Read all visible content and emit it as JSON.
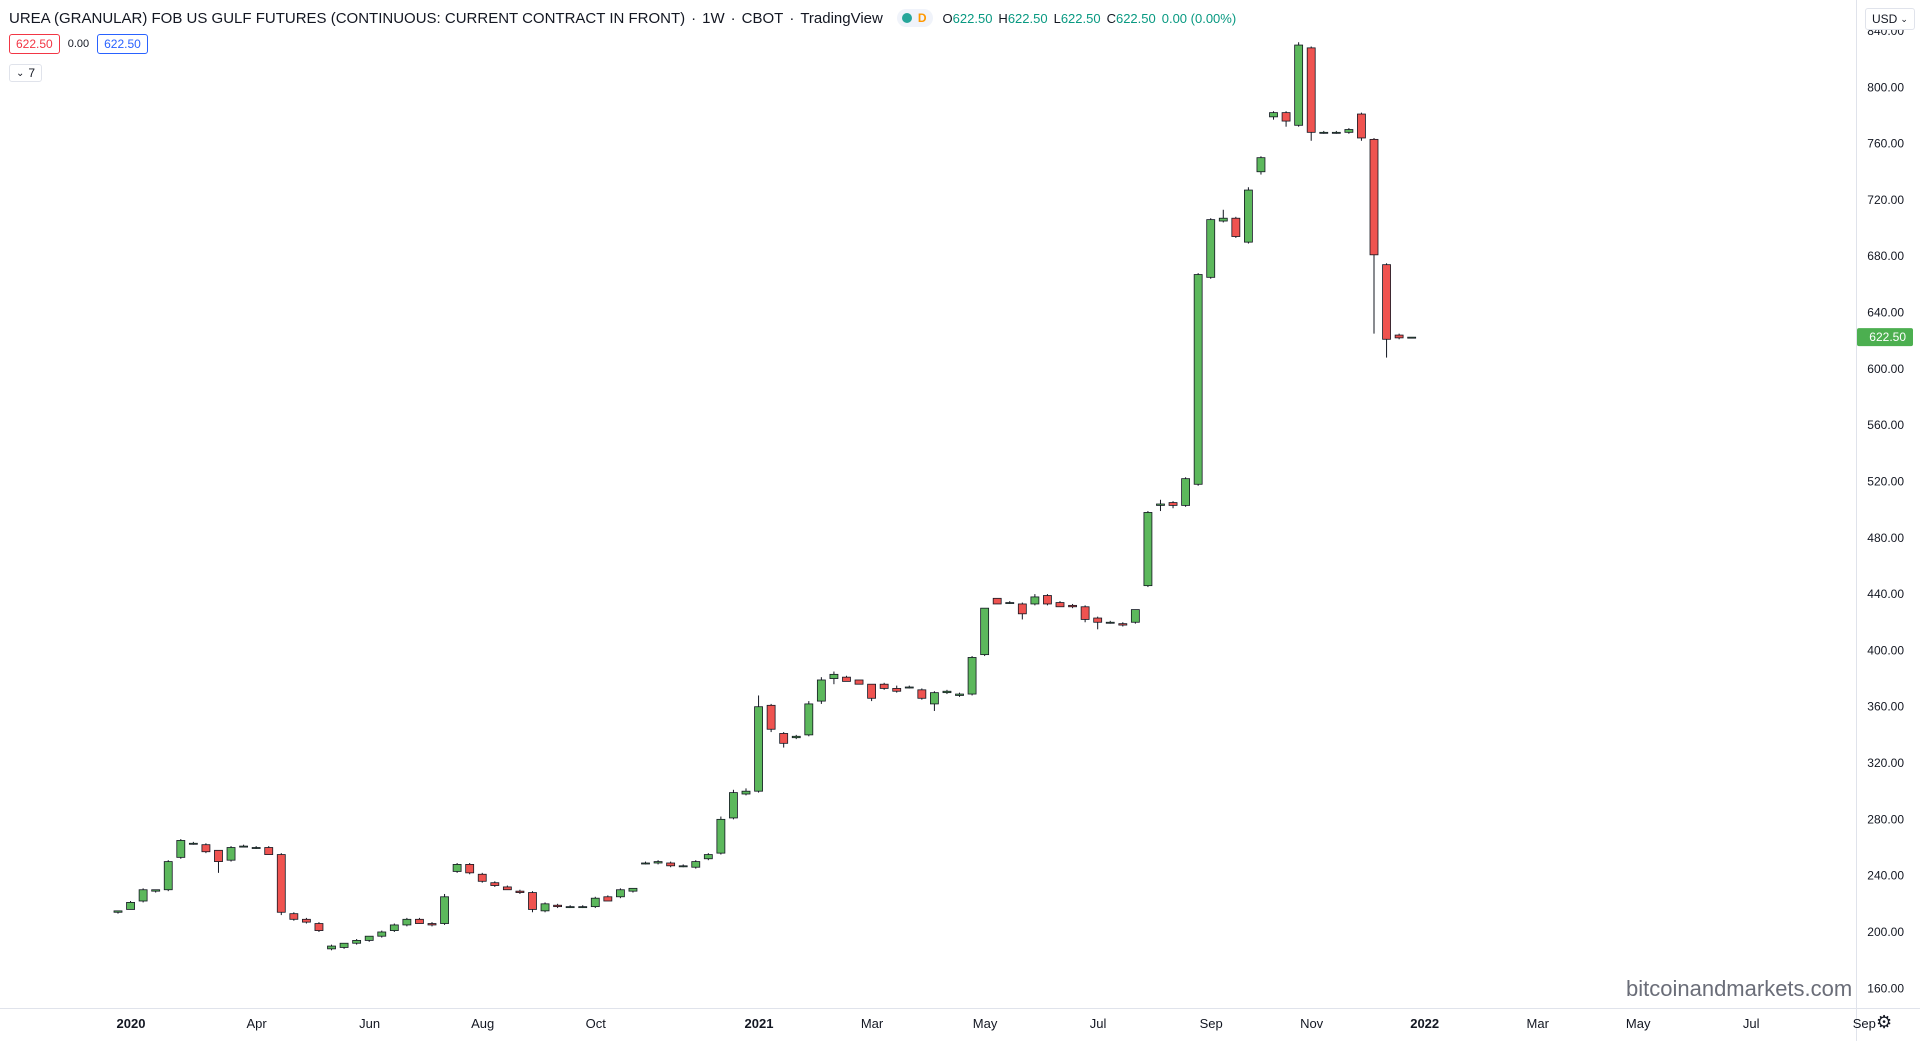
{
  "legend": {
    "title": "UREA (GRANULAR) FOB US GULF FUTURES (CONTINUOUS: CURRENT CONTRACT IN FRONT)",
    "interval": "1W",
    "exchange": "CBOT",
    "provider": "TradingView",
    "status_badge": "D",
    "ohlc": {
      "o_label": "O",
      "o": "622.50",
      "h_label": "H",
      "h": "622.50",
      "l_label": "L",
      "l": "622.50",
      "c_label": "C",
      "c": "622.50",
      "change": "0.00 (0.00%)"
    }
  },
  "quote": {
    "sell": "622.50",
    "spread": "0.00",
    "buy": "622.50"
  },
  "indicators_toggle": {
    "count": "7"
  },
  "currency": "USD",
  "watermark": "bitcoinandmarkets.com",
  "colors": {
    "up": "#5cb85c",
    "down": "#ef5350",
    "last_price": "#4caf50"
  },
  "chart_data": {
    "type": "candlestick",
    "y_axis": {
      "ticks": [
        "840.00",
        "800.00",
        "760.00",
        "720.00",
        "680.00",
        "640.00",
        "600.00",
        "560.00",
        "520.00",
        "480.00",
        "440.00",
        "400.00",
        "360.00",
        "320.00",
        "280.00",
        "240.00",
        "200.00",
        "160.00"
      ],
      "range": [
        146,
        862
      ]
    },
    "x_axis": {
      "ticks": [
        {
          "label": "2020",
          "bold": true,
          "index": 0
        },
        {
          "label": "Apr",
          "bold": false,
          "index": 10
        },
        {
          "label": "Jun",
          "bold": false,
          "index": 19
        },
        {
          "label": "Aug",
          "bold": false,
          "index": 28
        },
        {
          "label": "Oct",
          "bold": false,
          "index": 37
        },
        {
          "label": "2021",
          "bold": true,
          "index": 50
        },
        {
          "label": "Mar",
          "bold": false,
          "index": 59
        },
        {
          "label": "May",
          "bold": false,
          "index": 68
        },
        {
          "label": "Jul",
          "bold": false,
          "index": 77
        },
        {
          "label": "Sep",
          "bold": false,
          "index": 86
        },
        {
          "label": "Nov",
          "bold": false,
          "index": 94
        },
        {
          "label": "2022",
          "bold": true,
          "index": 103
        },
        {
          "label": "Mar",
          "bold": false,
          "index": 112
        },
        {
          "label": "May",
          "bold": false,
          "index": 120
        },
        {
          "label": "Jul",
          "bold": false,
          "index": 129
        },
        {
          "label": "Sep",
          "bold": false,
          "index": 138
        }
      ]
    },
    "last_price": "622.50",
    "candles": [
      {
        "i": 0,
        "o": 214,
        "h": 215,
        "l": 213,
        "c": 215
      },
      {
        "i": 1,
        "o": 216,
        "h": 222,
        "l": 216,
        "c": 221
      },
      {
        "i": 2,
        "o": 222,
        "h": 231,
        "l": 221,
        "c": 230
      },
      {
        "i": 3,
        "o": 229,
        "h": 230,
        "l": 228,
        "c": 230
      },
      {
        "i": 4,
        "o": 230,
        "h": 251,
        "l": 229,
        "c": 250
      },
      {
        "i": 5,
        "o": 253,
        "h": 266,
        "l": 252,
        "c": 265
      },
      {
        "i": 6,
        "o": 263,
        "h": 264,
        "l": 262,
        "c": 263
      },
      {
        "i": 7,
        "o": 262,
        "h": 263,
        "l": 256,
        "c": 257
      },
      {
        "i": 8,
        "o": 258,
        "h": 258,
        "l": 242,
        "c": 250
      },
      {
        "i": 9,
        "o": 251,
        "h": 261,
        "l": 250,
        "c": 260
      },
      {
        "i": 10,
        "o": 261,
        "h": 262,
        "l": 260,
        "c": 261
      },
      {
        "i": 11,
        "o": 260,
        "h": 261,
        "l": 259,
        "c": 260
      },
      {
        "i": 12,
        "o": 260,
        "h": 261,
        "l": 255,
        "c": 255
      },
      {
        "i": 13,
        "o": 255,
        "h": 256,
        "l": 212,
        "c": 214
      },
      {
        "i": 14,
        "o": 213,
        "h": 214,
        "l": 208,
        "c": 209
      },
      {
        "i": 15,
        "o": 209,
        "h": 210,
        "l": 206,
        "c": 207
      },
      {
        "i": 16,
        "o": 206,
        "h": 207,
        "l": 200,
        "c": 201
      },
      {
        "i": 17,
        "o": 188,
        "h": 191,
        "l": 187,
        "c": 190
      },
      {
        "i": 18,
        "o": 189,
        "h": 192,
        "l": 188,
        "c": 192
      },
      {
        "i": 19,
        "o": 192,
        "h": 195,
        "l": 191,
        "c": 194
      },
      {
        "i": 20,
        "o": 194,
        "h": 197,
        "l": 193,
        "c": 197
      },
      {
        "i": 21,
        "o": 197,
        "h": 201,
        "l": 196,
        "c": 200
      },
      {
        "i": 22,
        "o": 201,
        "h": 206,
        "l": 200,
        "c": 205
      },
      {
        "i": 23,
        "o": 205,
        "h": 210,
        "l": 204,
        "c": 209
      },
      {
        "i": 24,
        "o": 209,
        "h": 210,
        "l": 206,
        "c": 206
      },
      {
        "i": 25,
        "o": 206,
        "h": 207,
        "l": 204,
        "c": 205
      },
      {
        "i": 26,
        "o": 206,
        "h": 227,
        "l": 205,
        "c": 225
      },
      {
        "i": 27,
        "o": 243,
        "h": 249,
        "l": 242,
        "c": 248
      },
      {
        "i": 28,
        "o": 248,
        "h": 249,
        "l": 241,
        "c": 242
      },
      {
        "i": 29,
        "o": 241,
        "h": 242,
        "l": 235,
        "c": 236
      },
      {
        "i": 30,
        "o": 235,
        "h": 236,
        "l": 232,
        "c": 233
      },
      {
        "i": 31,
        "o": 232,
        "h": 233,
        "l": 230,
        "c": 230
      },
      {
        "i": 32,
        "o": 229,
        "h": 230,
        "l": 227,
        "c": 228
      },
      {
        "i": 33,
        "o": 228,
        "h": 229,
        "l": 214,
        "c": 216
      },
      {
        "i": 34,
        "o": 215,
        "h": 221,
        "l": 214,
        "c": 220
      },
      {
        "i": 35,
        "o": 219,
        "h": 220,
        "l": 217,
        "c": 218
      },
      {
        "i": 36,
        "o": 218,
        "h": 219,
        "l": 217,
        "c": 218
      },
      {
        "i": 37,
        "o": 218,
        "h": 219,
        "l": 217,
        "c": 218
      },
      {
        "i": 38,
        "o": 218,
        "h": 225,
        "l": 217,
        "c": 224
      },
      {
        "i": 39,
        "o": 225,
        "h": 226,
        "l": 222,
        "c": 222
      },
      {
        "i": 40,
        "o": 225,
        "h": 231,
        "l": 224,
        "c": 230
      },
      {
        "i": 41,
        "o": 229,
        "h": 231,
        "l": 228,
        "c": 231
      },
      {
        "i": 42,
        "o": 249,
        "h": 250,
        "l": 248,
        "c": 249
      },
      {
        "i": 43,
        "o": 249,
        "h": 251,
        "l": 248,
        "c": 250
      },
      {
        "i": 44,
        "o": 249,
        "h": 250,
        "l": 246,
        "c": 247
      },
      {
        "i": 45,
        "o": 247,
        "h": 248,
        "l": 246,
        "c": 247
      },
      {
        "i": 46,
        "o": 246,
        "h": 251,
        "l": 245,
        "c": 250
      },
      {
        "i": 47,
        "o": 252,
        "h": 256,
        "l": 251,
        "c": 255
      },
      {
        "i": 48,
        "o": 256,
        "h": 282,
        "l": 255,
        "c": 280
      },
      {
        "i": 49,
        "o": 281,
        "h": 301,
        "l": 280,
        "c": 299
      },
      {
        "i": 50,
        "o": 298,
        "h": 302,
        "l": 297,
        "c": 300
      },
      {
        "i": 51,
        "o": 300,
        "h": 368,
        "l": 299,
        "c": 360
      },
      {
        "i": 52,
        "o": 361,
        "h": 362,
        "l": 342,
        "c": 344
      },
      {
        "i": 53,
        "o": 341,
        "h": 342,
        "l": 331,
        "c": 334
      },
      {
        "i": 54,
        "o": 338,
        "h": 340,
        "l": 337,
        "c": 339
      },
      {
        "i": 55,
        "o": 340,
        "h": 364,
        "l": 339,
        "c": 362
      },
      {
        "i": 56,
        "o": 364,
        "h": 381,
        "l": 362,
        "c": 379
      },
      {
        "i": 57,
        "o": 380,
        "h": 385,
        "l": 376,
        "c": 383
      },
      {
        "i": 58,
        "o": 381,
        "h": 382,
        "l": 378,
        "c": 378
      },
      {
        "i": 59,
        "o": 379,
        "h": 379,
        "l": 376,
        "c": 376
      },
      {
        "i": 60,
        "o": 376,
        "h": 376,
        "l": 364,
        "c": 366
      },
      {
        "i": 61,
        "o": 376,
        "h": 377,
        "l": 372,
        "c": 373
      },
      {
        "i": 62,
        "o": 373,
        "h": 375,
        "l": 370,
        "c": 371
      },
      {
        "i": 63,
        "o": 374,
        "h": 375,
        "l": 373,
        "c": 374
      },
      {
        "i": 64,
        "o": 372,
        "h": 373,
        "l": 365,
        "c": 366
      },
      {
        "i": 65,
        "o": 362,
        "h": 371,
        "l": 357,
        "c": 370
      },
      {
        "i": 66,
        "o": 370,
        "h": 372,
        "l": 369,
        "c": 371
      },
      {
        "i": 67,
        "o": 368,
        "h": 370,
        "l": 367,
        "c": 369
      },
      {
        "i": 68,
        "o": 369,
        "h": 396,
        "l": 368,
        "c": 395
      },
      {
        "i": 69,
        "o": 397,
        "h": 430,
        "l": 396,
        "c": 430
      },
      {
        "i": 70,
        "o": 437,
        "h": 437,
        "l": 433,
        "c": 433
      },
      {
        "i": 71,
        "o": 434,
        "h": 435,
        "l": 433,
        "c": 434
      },
      {
        "i": 72,
        "o": 433,
        "h": 434,
        "l": 422,
        "c": 426
      },
      {
        "i": 73,
        "o": 433,
        "h": 440,
        "l": 432,
        "c": 438
      },
      {
        "i": 74,
        "o": 439,
        "h": 440,
        "l": 432,
        "c": 433
      },
      {
        "i": 75,
        "o": 434,
        "h": 435,
        "l": 431,
        "c": 431
      },
      {
        "i": 76,
        "o": 432,
        "h": 433,
        "l": 430,
        "c": 431
      },
      {
        "i": 77,
        "o": 431,
        "h": 432,
        "l": 420,
        "c": 422
      },
      {
        "i": 78,
        "o": 423,
        "h": 424,
        "l": 415,
        "c": 420
      },
      {
        "i": 79,
        "o": 420,
        "h": 421,
        "l": 419,
        "c": 420
      },
      {
        "i": 80,
        "o": 419,
        "h": 420,
        "l": 417,
        "c": 418
      },
      {
        "i": 81,
        "o": 420,
        "h": 429,
        "l": 419,
        "c": 429
      },
      {
        "i": 82,
        "o": 446,
        "h": 499,
        "l": 445,
        "c": 498
      },
      {
        "i": 83,
        "o": 503,
        "h": 507,
        "l": 499,
        "c": 504
      },
      {
        "i": 84,
        "o": 505,
        "h": 506,
        "l": 501,
        "c": 503
      },
      {
        "i": 85,
        "o": 503,
        "h": 523,
        "l": 502,
        "c": 522
      },
      {
        "i": 86,
        "o": 518,
        "h": 668,
        "l": 517,
        "c": 667
      },
      {
        "i": 87,
        "o": 665,
        "h": 707,
        "l": 664,
        "c": 706
      },
      {
        "i": 88,
        "o": 705,
        "h": 713,
        "l": 704,
        "c": 707
      },
      {
        "i": 89,
        "o": 707,
        "h": 708,
        "l": 693,
        "c": 694
      },
      {
        "i": 90,
        "o": 690,
        "h": 729,
        "l": 689,
        "c": 727
      },
      {
        "i": 91,
        "o": 740,
        "h": 751,
        "l": 738,
        "c": 750
      },
      {
        "i": 92,
        "o": 779,
        "h": 783,
        "l": 777,
        "c": 782
      },
      {
        "i": 93,
        "o": 782,
        "h": 783,
        "l": 772,
        "c": 776
      },
      {
        "i": 94,
        "o": 773,
        "h": 832,
        "l": 772,
        "c": 830
      },
      {
        "i": 95,
        "o": 828,
        "h": 829,
        "l": 762,
        "c": 768
      },
      {
        "i": 96,
        "o": 768,
        "h": 769,
        "l": 767,
        "c": 768
      },
      {
        "i": 97,
        "o": 768,
        "h": 769,
        "l": 767,
        "c": 768
      },
      {
        "i": 98,
        "o": 768,
        "h": 771,
        "l": 767,
        "c": 770
      },
      {
        "i": 99,
        "o": 781,
        "h": 782,
        "l": 762,
        "c": 764
      },
      {
        "i": 100,
        "o": 763,
        "h": 764,
        "l": 625,
        "c": 681
      },
      {
        "i": 101,
        "o": 674,
        "h": 675,
        "l": 608,
        "c": 621
      },
      {
        "i": 102,
        "o": 624,
        "h": 625,
        "l": 621,
        "c": 622
      },
      {
        "i": 103,
        "o": 622.5,
        "h": 622.5,
        "l": 622.5,
        "c": 622.5
      }
    ]
  }
}
